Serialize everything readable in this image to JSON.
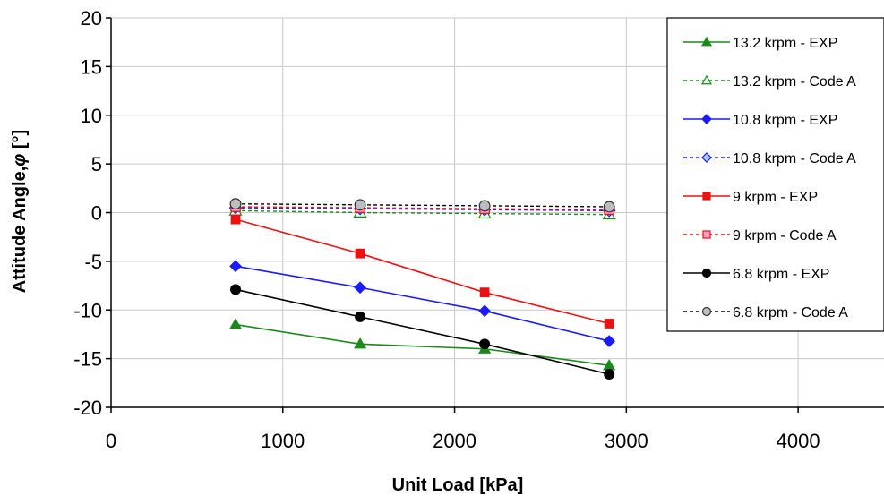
{
  "chart_data": {
    "type": "line",
    "title": "",
    "xlabel": "Unit Load [kPa]",
    "ylabel_prefix": "Attitude Angle,",
    "ylabel_symbol": "φ",
    "ylabel_suffix": " [°]",
    "xlim": [
      0,
      4500
    ],
    "ylim": [
      -20,
      20
    ],
    "xticks": [
      0,
      1000,
      2000,
      3000,
      4000
    ],
    "yticks": [
      20,
      15,
      10,
      5,
      0,
      -5,
      -10,
      -15,
      -20
    ],
    "grid": true,
    "legend_position": "right",
    "x": [
      725,
      1450,
      2175,
      2900
    ],
    "series": [
      {
        "name": "13.2 krpm - EXP",
        "values": [
          -11.5,
          -13.5,
          -14.0,
          -15.7
        ],
        "color": "#1a8a1a",
        "dash": "solid",
        "marker": "triangle",
        "filled": true
      },
      {
        "name": "13.2 krpm - Code A",
        "values": [
          0.2,
          0.0,
          -0.1,
          -0.2
        ],
        "color": "#1a8a1a",
        "dash": "dashed",
        "marker": "triangle",
        "filled": false
      },
      {
        "name": "10.8 krpm - EXP",
        "values": [
          -5.5,
          -7.7,
          -10.1,
          -13.2
        ],
        "color": "#1a1aff",
        "dash": "solid",
        "marker": "diamond",
        "filled": true
      },
      {
        "name": "10.8 krpm - Code A",
        "values": [
          0.5,
          0.4,
          0.3,
          0.2
        ],
        "color": "#1a1aff",
        "dash": "dashed",
        "marker": "diamond",
        "filled": false
      },
      {
        "name": "9 krpm - EXP",
        "values": [
          -0.7,
          -4.2,
          -8.2,
          -11.4
        ],
        "color": "#ee1111",
        "dash": "solid",
        "marker": "square",
        "filled": true
      },
      {
        "name": "9 krpm - Code A",
        "values": [
          0.6,
          0.5,
          0.4,
          0.3
        ],
        "color": "#ee1111",
        "dash": "dashed",
        "marker": "square",
        "filled": false
      },
      {
        "name": "6.8 krpm - EXP",
        "values": [
          -7.9,
          -10.7,
          -13.5,
          -16.6
        ],
        "color": "#000000",
        "dash": "solid",
        "marker": "circle",
        "filled": true
      },
      {
        "name": "6.8 krpm - Code A",
        "values": [
          0.9,
          0.8,
          0.7,
          0.6
        ],
        "color": "#000000",
        "dash": "dashed",
        "marker": "circle",
        "filled": false
      }
    ]
  }
}
